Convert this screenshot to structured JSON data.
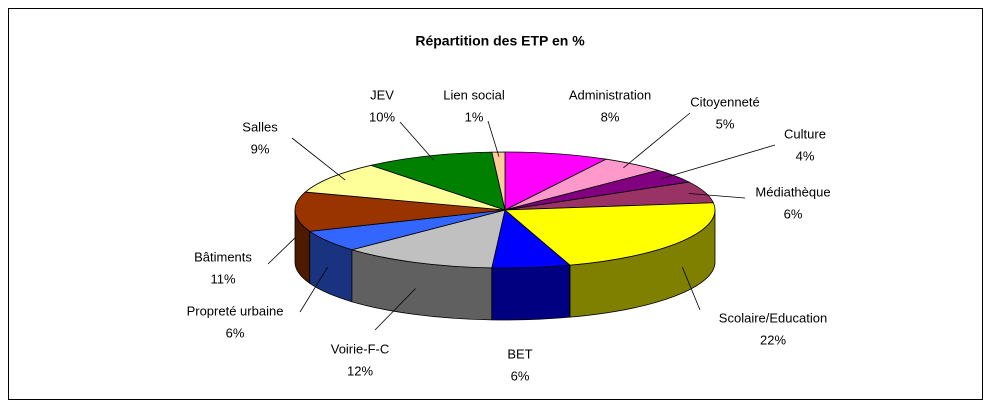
{
  "chart_data": {
    "type": "pie",
    "title": "Répartition des ETP en %",
    "categories": [
      "Administration",
      "Citoyenneté",
      "Culture",
      "Médiathèque",
      "Scolaire/Education",
      "BET",
      "Voirie-F-C",
      "Propreté urbaine",
      "Bâtiments",
      "Salles",
      "JEV",
      "Lien social"
    ],
    "values": [
      8,
      5,
      4,
      6,
      22,
      6,
      12,
      6,
      11,
      9,
      10,
      1
    ],
    "value_labels": [
      "8%",
      "5%",
      "4%",
      "6%",
      "22%",
      "6%",
      "12%",
      "6%",
      "11%",
      "9%",
      "10%",
      "1%"
    ],
    "colors": [
      "#ff00ff",
      "#ff99cc",
      "#800080",
      "#993366",
      "#ffff00",
      "#0000ff",
      "#c0c0c0",
      "#3366ff",
      "#993300",
      "#ffff99",
      "#008000",
      "#ffcc99"
    ]
  }
}
